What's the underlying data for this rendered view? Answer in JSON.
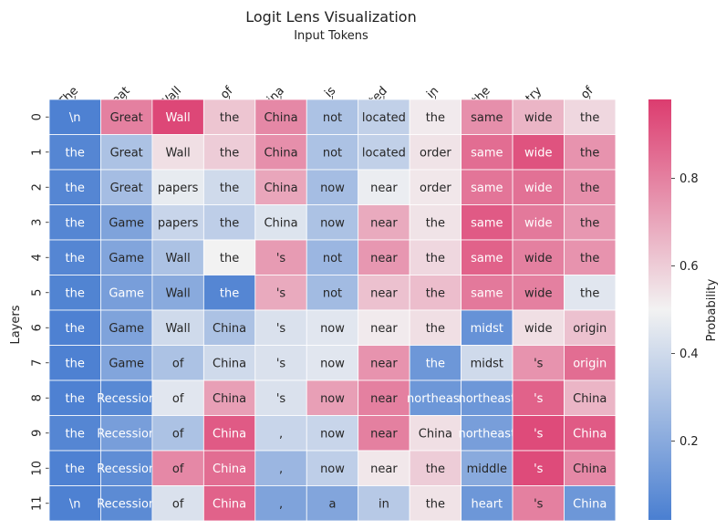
{
  "chart_data": {
    "type": "heatmap",
    "title": "Logit Lens Visualization",
    "xlabel": "Input Tokens",
    "ylabel": "Layers",
    "colorbar_label": "Probability",
    "x_tokens": [
      "The",
      "Great",
      "Wall",
      "of",
      "China",
      "is",
      "located",
      "in",
      "the",
      "country",
      "of"
    ],
    "layers": [
      "0",
      "1",
      "2",
      "3",
      "4",
      "5",
      "6",
      "7",
      "8",
      "9",
      "10",
      "11"
    ],
    "colorbar_ticks": [
      "0.2",
      "0.4",
      "0.6",
      "0.8"
    ],
    "colorbar_tick_values": [
      0.2,
      0.4,
      0.6,
      0.8
    ],
    "colorbar_range": [
      0.02,
      0.98
    ],
    "colormap": [
      "#4a7fd1",
      "#f2f2f2",
      "#dc3c6f"
    ],
    "top_tokens": [
      [
        "\\n",
        "Great",
        "Wall",
        "the",
        "China",
        "not",
        "located",
        "the",
        "same",
        "wide",
        "the"
      ],
      [
        "the",
        "Great",
        "Wall",
        "the",
        "China",
        "not",
        "located",
        "order",
        "same",
        "wide",
        "the"
      ],
      [
        "the",
        "Great",
        "papers",
        "the",
        "China",
        "now",
        "near",
        "order",
        "same",
        "wide",
        "the"
      ],
      [
        "the",
        "Game",
        "papers",
        "the",
        "China",
        "now",
        "near",
        "the",
        "same",
        "wide",
        "the"
      ],
      [
        "the",
        "Game",
        "Wall",
        "the",
        "'s",
        "not",
        "near",
        "the",
        "same",
        "wide",
        "the"
      ],
      [
        "the",
        "Game",
        "Wall",
        "the",
        "'s",
        "not",
        "near",
        "the",
        "same",
        "wide",
        "the"
      ],
      [
        "the",
        "Game",
        "Wall",
        "China",
        "'s",
        "now",
        "near",
        "the",
        "midst",
        "wide",
        "origin"
      ],
      [
        "the",
        "Game",
        "of",
        "China",
        "'s",
        "now",
        "near",
        "the",
        "midst",
        "'s",
        "origin"
      ],
      [
        "the",
        "Recession",
        "of",
        "China",
        "'s",
        "now",
        "near",
        "northeast",
        "northeast",
        "'s",
        "China"
      ],
      [
        "the",
        "Recession",
        "of",
        "China",
        ",",
        "now",
        "near",
        "China",
        "northeast",
        "'s",
        "China"
      ],
      [
        "the",
        "Recession",
        "of",
        "China",
        ",",
        "now",
        "near",
        "the",
        "middle",
        "'s",
        "China"
      ],
      [
        "\\n",
        "Recession",
        "of",
        "China",
        ",",
        "a",
        "in",
        "the",
        "heart",
        "'s",
        "China"
      ]
    ],
    "probabilities": [
      [
        0.03,
        0.8,
        0.95,
        0.62,
        0.78,
        0.3,
        0.36,
        0.52,
        0.76,
        0.66,
        0.57
      ],
      [
        0.05,
        0.3,
        0.55,
        0.6,
        0.76,
        0.3,
        0.36,
        0.54,
        0.85,
        0.92,
        0.75
      ],
      [
        0.05,
        0.28,
        0.47,
        0.4,
        0.7,
        0.28,
        0.48,
        0.53,
        0.83,
        0.84,
        0.76
      ],
      [
        0.05,
        0.17,
        0.38,
        0.35,
        0.44,
        0.3,
        0.69,
        0.54,
        0.9,
        0.82,
        0.74
      ],
      [
        0.05,
        0.18,
        0.3,
        0.5,
        0.73,
        0.25,
        0.74,
        0.57,
        0.88,
        0.8,
        0.75
      ],
      [
        0.04,
        0.15,
        0.2,
        0.05,
        0.69,
        0.27,
        0.63,
        0.64,
        0.82,
        0.8,
        0.45
      ],
      [
        0.03,
        0.17,
        0.4,
        0.3,
        0.43,
        0.45,
        0.52,
        0.55,
        0.1,
        0.55,
        0.63
      ],
      [
        0.03,
        0.18,
        0.3,
        0.4,
        0.43,
        0.45,
        0.75,
        0.12,
        0.4,
        0.75,
        0.85
      ],
      [
        0.03,
        0.06,
        0.45,
        0.72,
        0.43,
        0.72,
        0.8,
        0.12,
        0.12,
        0.88,
        0.66
      ],
      [
        0.05,
        0.15,
        0.3,
        0.9,
        0.38,
        0.38,
        0.8,
        0.55,
        0.15,
        0.94,
        0.9
      ],
      [
        0.03,
        0.08,
        0.78,
        0.85,
        0.25,
        0.35,
        0.53,
        0.6,
        0.2,
        0.94,
        0.78
      ],
      [
        0.03,
        0.07,
        0.43,
        0.88,
        0.17,
        0.18,
        0.33,
        0.54,
        0.12,
        0.8,
        0.12
      ]
    ]
  }
}
